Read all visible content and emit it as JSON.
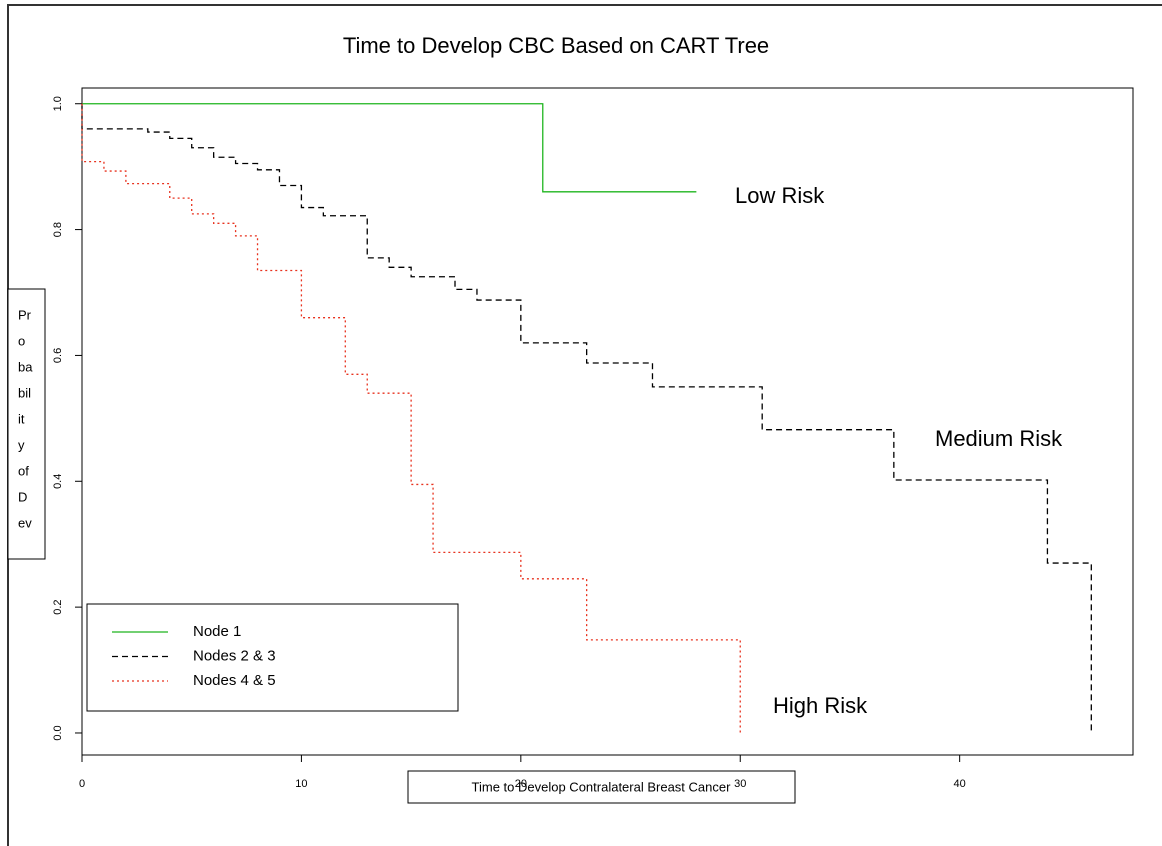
{
  "chart_data": {
    "type": "step",
    "title": "Time to Develop CBC Based on CART Tree",
    "xlabel": "Time to Develop Contralateral Breast Cancer",
    "ylabel_lines": [
      "Pr",
      "o",
      "ba",
      "bil",
      "it",
      "y",
      "of",
      "D",
      "ev"
    ],
    "annotations": [
      "Low Risk",
      "Medium Risk",
      "High Risk"
    ],
    "xlim": [
      0,
      47.9
    ],
    "ylim": [
      -0.035,
      1.025
    ],
    "xticks": [
      0,
      10,
      20,
      30,
      40
    ],
    "yticks": [
      {
        "value": 0,
        "label": "0.0"
      },
      {
        "value": 0.2,
        "label": "0.2"
      },
      {
        "value": 0.4,
        "label": "0.4"
      },
      {
        "value": 0.6,
        "label": "0.6"
      },
      {
        "value": 0.8,
        "label": "0.8"
      },
      {
        "value": 1,
        "label": "1.0"
      }
    ],
    "legend": "bottom-left",
    "series": [
      {
        "name": "Node 1",
        "color": "#1fb51f",
        "linestyle": "solid",
        "x": [
          0,
          21,
          28
        ],
        "values": [
          1.0,
          0.86,
          0.86
        ]
      },
      {
        "name": "Nodes 2 & 3",
        "color": "#000000",
        "linestyle": "dashed",
        "x": [
          0,
          0,
          3,
          4,
          5,
          6,
          7,
          8,
          9,
          10,
          11,
          13,
          14,
          15,
          17,
          18,
          20,
          23,
          26,
          31,
          37,
          44,
          46
        ],
        "values": [
          1.0,
          0.96,
          0.955,
          0.945,
          0.93,
          0.915,
          0.905,
          0.895,
          0.87,
          0.835,
          0.822,
          0.755,
          0.74,
          0.725,
          0.705,
          0.688,
          0.62,
          0.588,
          0.55,
          0.482,
          0.402,
          0.27,
          0.0
        ]
      },
      {
        "name": "Nodes 4 & 5",
        "color": "#e8321e",
        "linestyle": "dotted",
        "x": [
          0,
          0,
          1,
          2,
          4,
          5,
          6,
          7,
          8,
          10,
          12,
          13,
          15,
          16,
          20,
          23,
          30
        ],
        "values": [
          1.0,
          0.908,
          0.893,
          0.873,
          0.85,
          0.825,
          0.81,
          0.79,
          0.735,
          0.66,
          0.57,
          0.54,
          0.395,
          0.287,
          0.245,
          0.148,
          0.0
        ]
      }
    ]
  }
}
